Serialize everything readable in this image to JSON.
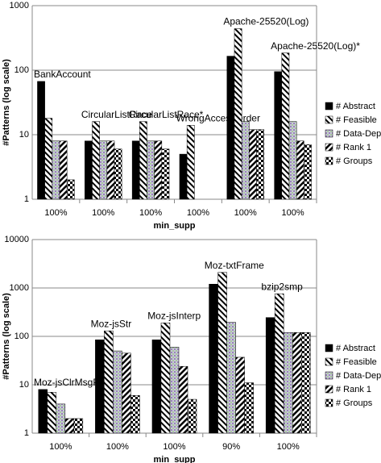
{
  "chart_data": [
    {
      "type": "bar",
      "log_scale": true,
      "grid": true,
      "y_label": "#Patterns (log scale)",
      "x_label": "min_supp",
      "categories": [
        "100%",
        "100%",
        "100%",
        "100%",
        "100%",
        "100%"
      ],
      "annotations": [
        "BankAccount",
        "CircularListRace",
        "CircularListRace*",
        "WrongAccessOrder",
        "Apache-25520(Log)",
        "Apache-25520(Log)*"
      ],
      "ylim": [
        1,
        1000
      ],
      "yticks": [
        1,
        10,
        100,
        1000
      ],
      "series": [
        {
          "name": "# Abstract",
          "values": [
            67,
            8,
            8,
            5,
            165,
            95
          ]
        },
        {
          "name": "# Feasible",
          "values": [
            18,
            16,
            16,
            14,
            440,
            185
          ]
        },
        {
          "name": "# Data-Dep",
          "values": [
            8,
            8,
            8,
            null,
            16,
            16
          ]
        },
        {
          "name": "# Rank 1",
          "values": [
            8,
            8,
            8,
            null,
            12,
            8
          ]
        },
        {
          "name": "# Groups",
          "values": [
            2,
            6,
            6,
            null,
            12,
            7
          ]
        }
      ]
    },
    {
      "type": "bar",
      "log_scale": true,
      "grid": true,
      "y_label": "#Patterns (log scale)",
      "x_label": "min_supp",
      "categories": [
        "100%",
        "100%",
        "100%",
        "90%",
        "100%"
      ],
      "annotations": [
        "Moz-jsClrMsgPa",
        "Moz-jsStr",
        "Moz-jsInterp",
        "Moz-txtFrame",
        "bzip2smp"
      ],
      "ylim": [
        1,
        10000
      ],
      "yticks": [
        1,
        10,
        100,
        1000,
        10000
      ],
      "series": [
        {
          "name": "# Abstract",
          "values": [
            8,
            85,
            85,
            1200,
            245
          ]
        },
        {
          "name": "# Feasible",
          "values": [
            7,
            130,
            190,
            2100,
            760
          ]
        },
        {
          "name": "# Data-Dep",
          "values": [
            4,
            50,
            60,
            195,
            120
          ]
        },
        {
          "name": "# Rank 1",
          "values": [
            2,
            45,
            24,
            37,
            120
          ]
        },
        {
          "name": "# Groups",
          "values": [
            2,
            6,
            5,
            11,
            120
          ]
        }
      ]
    }
  ]
}
